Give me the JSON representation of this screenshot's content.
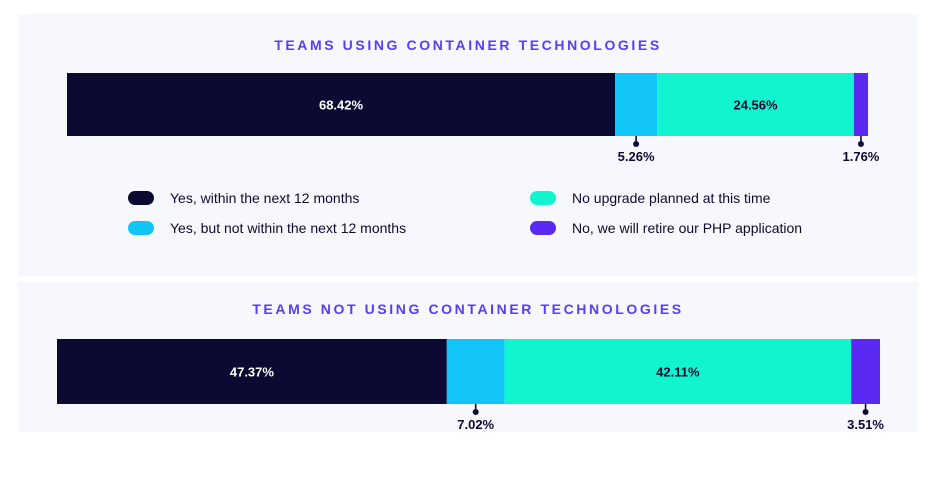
{
  "legend": [
    {
      "label": "Yes, within the next 12 months",
      "color": "#0b0a33"
    },
    {
      "label": "Yes, but not within the next 12 months",
      "color": "#11c5f8"
    },
    {
      "label": "No upgrade planned at this time",
      "color": "#10f4cf"
    },
    {
      "label": "No, we will retire our PHP application",
      "color": "#5a2af3"
    }
  ],
  "chart_data": [
    {
      "type": "bar",
      "title": "TEAMS USING CONTAINER TECHNOLOGIES",
      "stacked": true,
      "orientation": "horizontal",
      "unit": "%",
      "series": [
        {
          "name": "Yes, within the next 12 months",
          "values": [
            68.42
          ],
          "label": "68.42%"
        },
        {
          "name": "Yes, but not within the next 12 months",
          "values": [
            5.26
          ],
          "label": "5.26%"
        },
        {
          "name": "No upgrade planned at this time",
          "values": [
            24.56
          ],
          "label": "24.56%"
        },
        {
          "name": "No, we will retire our PHP application",
          "values": [
            1.76
          ],
          "label": "1.76%"
        }
      ]
    },
    {
      "type": "bar",
      "title": "TEAMS NOT USING CONTAINER TECHNOLOGIES",
      "stacked": true,
      "orientation": "horizontal",
      "unit": "%",
      "series": [
        {
          "name": "Yes, within the next 12 months",
          "values": [
            47.37
          ],
          "label": "47.37%"
        },
        {
          "name": "Yes, but not within the next 12 months",
          "values": [
            7.02
          ],
          "label": "7.02%"
        },
        {
          "name": "No upgrade planned at this time",
          "values": [
            42.11
          ],
          "label": "42.11%"
        },
        {
          "name": "No, we will retire our PHP application",
          "values": [
            3.51
          ],
          "label": "3.51%"
        }
      ]
    }
  ]
}
